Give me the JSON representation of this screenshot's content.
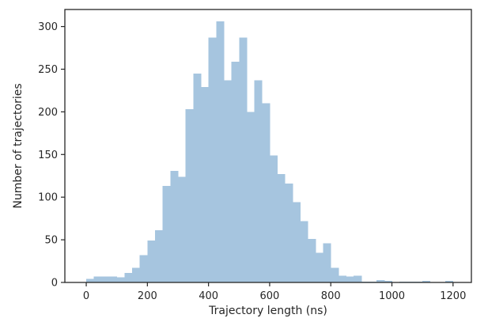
{
  "chart_data": {
    "type": "bar",
    "title": "",
    "xlabel": "Trajectory length (ns)",
    "ylabel": "Number of trajectories",
    "xlim": [
      -70,
      1260
    ],
    "ylim": [
      0,
      320
    ],
    "x_ticks": [
      0,
      200,
      400,
      600,
      800,
      1000,
      1200
    ],
    "y_ticks": [
      0,
      50,
      100,
      150,
      200,
      250,
      300
    ],
    "grid": false,
    "bar_color": "#a6c5df",
    "bin_width": 25,
    "bins": [
      {
        "x0": 0,
        "x1": 25,
        "count": 4
      },
      {
        "x0": 25,
        "x1": 50,
        "count": 7
      },
      {
        "x0": 50,
        "x1": 75,
        "count": 7
      },
      {
        "x0": 75,
        "x1": 100,
        "count": 7
      },
      {
        "x0": 100,
        "x1": 125,
        "count": 6
      },
      {
        "x0": 125,
        "x1": 150,
        "count": 11
      },
      {
        "x0": 150,
        "x1": 175,
        "count": 17
      },
      {
        "x0": 175,
        "x1": 200,
        "count": 32
      },
      {
        "x0": 200,
        "x1": 225,
        "count": 49
      },
      {
        "x0": 225,
        "x1": 250,
        "count": 61
      },
      {
        "x0": 250,
        "x1": 275,
        "count": 113
      },
      {
        "x0": 275,
        "x1": 300,
        "count": 131
      },
      {
        "x0": 300,
        "x1": 325,
        "count": 124
      },
      {
        "x0": 325,
        "x1": 350,
        "count": 203
      },
      {
        "x0": 350,
        "x1": 375,
        "count": 245
      },
      {
        "x0": 375,
        "x1": 400,
        "count": 229
      },
      {
        "x0": 400,
        "x1": 425,
        "count": 287
      },
      {
        "x0": 425,
        "x1": 450,
        "count": 306
      },
      {
        "x0": 450,
        "x1": 475,
        "count": 237
      },
      {
        "x0": 475,
        "x1": 500,
        "count": 259
      },
      {
        "x0": 500,
        "x1": 525,
        "count": 287
      },
      {
        "x0": 525,
        "x1": 550,
        "count": 200
      },
      {
        "x0": 550,
        "x1": 575,
        "count": 237
      },
      {
        "x0": 575,
        "x1": 600,
        "count": 210
      },
      {
        "x0": 600,
        "x1": 625,
        "count": 149
      },
      {
        "x0": 625,
        "x1": 650,
        "count": 127
      },
      {
        "x0": 650,
        "x1": 675,
        "count": 116
      },
      {
        "x0": 675,
        "x1": 700,
        "count": 94
      },
      {
        "x0": 700,
        "x1": 725,
        "count": 72
      },
      {
        "x0": 725,
        "x1": 750,
        "count": 51
      },
      {
        "x0": 750,
        "x1": 775,
        "count": 35
      },
      {
        "x0": 775,
        "x1": 800,
        "count": 46
      },
      {
        "x0": 800,
        "x1": 825,
        "count": 17
      },
      {
        "x0": 825,
        "x1": 850,
        "count": 8
      },
      {
        "x0": 850,
        "x1": 875,
        "count": 7
      },
      {
        "x0": 875,
        "x1": 900,
        "count": 8
      },
      {
        "x0": 900,
        "x1": 925,
        "count": 1
      },
      {
        "x0": 925,
        "x1": 950,
        "count": 1
      },
      {
        "x0": 950,
        "x1": 975,
        "count": 3
      },
      {
        "x0": 975,
        "x1": 1000,
        "count": 2
      },
      {
        "x0": 1000,
        "x1": 1025,
        "count": 0
      },
      {
        "x0": 1025,
        "x1": 1050,
        "count": 1
      },
      {
        "x0": 1050,
        "x1": 1075,
        "count": 1
      },
      {
        "x0": 1075,
        "x1": 1100,
        "count": 1
      },
      {
        "x0": 1100,
        "x1": 1125,
        "count": 2
      },
      {
        "x0": 1125,
        "x1": 1150,
        "count": 0
      },
      {
        "x0": 1150,
        "x1": 1175,
        "count": 0
      },
      {
        "x0": 1175,
        "x1": 1200,
        "count": 2
      }
    ]
  }
}
